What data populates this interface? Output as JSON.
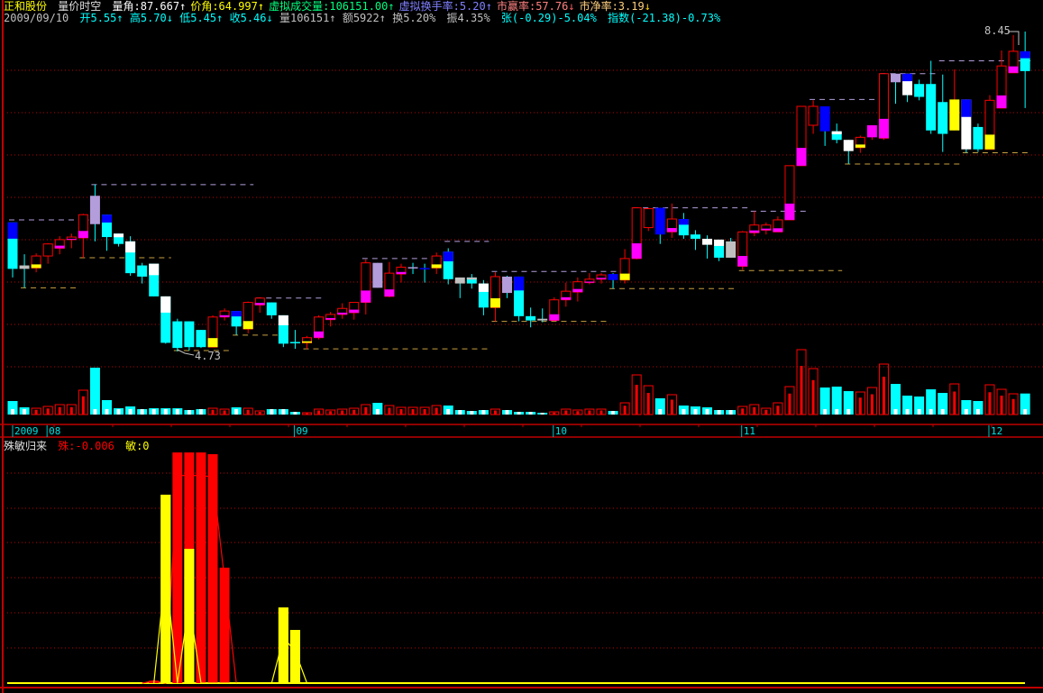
{
  "header": {
    "stock_name": "正和股份",
    "formula_name": "量价时空",
    "items": [
      {
        "label": "量角:87.667",
        "arrow": "↑",
        "color": "#ffffff",
        "arrow_color": "#ffffff"
      },
      {
        "label": "价角:64.997",
        "arrow": "↑",
        "color": "#ffff00",
        "arrow_color": "#ffff00"
      },
      {
        "label": "虚拟成交量:106151.00",
        "arrow": "↑",
        "color": "#00ff80",
        "arrow_color": "#00ff80"
      },
      {
        "label": "虚拟换手率:5.20",
        "arrow": "↑",
        "color": "#8080ff",
        "arrow_color": "#8080ff"
      },
      {
        "label": "市赢率:57.76",
        "arrow": "↓",
        "color": "#ff8080",
        "arrow_color": "#ff6060"
      },
      {
        "label": "市净率:3.19",
        "arrow": "↓",
        "color": "#ffd080",
        "arrow_color": "#ffd000"
      }
    ],
    "row2": {
      "date": "2009/09/10",
      "open": "开5.55",
      "open_arrow": "↑",
      "high": "高5.70",
      "high_arrow": "↓",
      "low": "低5.45",
      "low_arrow": "↑",
      "close": "收5.46",
      "close_arrow": "↓",
      "volume": "量106151",
      "volume_arrow": "↑",
      "amount": "额5922",
      "amount_arrow": "↑",
      "turnover": "换5.20%",
      "amplitude": "振4.35%",
      "change": "张(-0.29)-5.04%",
      "index": "指数(-21.38)-0.73%"
    }
  },
  "colors": {
    "up": "#ff0000",
    "down": "#00ffff",
    "grid": "#c00000",
    "cyan": "#00ffff",
    "blue": "#0000ff",
    "white": "#ffffff",
    "gray": "#c0c0c0",
    "purple": "#b39ddb",
    "yellow": "#ffff00",
    "magenta": "#ff00ff",
    "resistance": "#b39ddb",
    "support": "#c8a040"
  },
  "chart_data": [
    {
      "type": "candlestick",
      "title": "",
      "price_labels": {
        "max": "8.45",
        "min": "4.73"
      },
      "ylim": [
        4.45,
        8.45
      ],
      "candles": [
        [
          6.23,
          6.23,
          5.59,
          5.69,
          "cyan",
          "blue"
        ],
        [
          5.73,
          5.86,
          5.47,
          5.69,
          "gray",
          ""
        ],
        [
          5.7,
          5.87,
          5.65,
          5.84,
          "",
          "yellow"
        ],
        [
          5.84,
          5.99,
          5.75,
          5.98,
          "",
          ""
        ],
        [
          5.93,
          6.07,
          5.86,
          6.03,
          "",
          "magenta"
        ],
        [
          6.03,
          6.1,
          5.93,
          6.06,
          "",
          "magenta"
        ],
        [
          6.05,
          6.33,
          5.82,
          6.32,
          "",
          "magenta"
        ],
        [
          6.54,
          6.67,
          6.01,
          6.21,
          "purple",
          ""
        ],
        [
          6.32,
          6.32,
          5.9,
          6.06,
          "cyan",
          "blue"
        ],
        [
          6.1,
          6.1,
          5.95,
          5.98,
          "cyan",
          "white"
        ],
        [
          6.01,
          6.07,
          5.61,
          5.64,
          "cyan",
          "white"
        ],
        [
          5.73,
          5.76,
          5.52,
          5.6,
          "cyan",
          ""
        ],
        [
          5.75,
          5.75,
          5.37,
          5.37,
          "cyan",
          "white"
        ],
        [
          5.37,
          5.37,
          4.82,
          4.83,
          "cyan",
          "white"
        ],
        [
          5.08,
          5.11,
          4.73,
          4.77,
          "cyan",
          ""
        ],
        [
          5.08,
          5.08,
          4.74,
          4.78,
          "cyan",
          ""
        ],
        [
          4.98,
          4.98,
          4.77,
          4.78,
          "cyan",
          ""
        ],
        [
          4.78,
          5.15,
          4.78,
          5.13,
          "",
          "yellow"
        ],
        [
          5.13,
          5.23,
          5.09,
          5.2,
          "",
          "magenta"
        ],
        [
          5.2,
          5.2,
          4.92,
          5.02,
          "cyan",
          "blue"
        ],
        [
          4.99,
          5.31,
          4.94,
          5.3,
          "",
          "yellow"
        ],
        [
          5.27,
          5.36,
          5.18,
          5.35,
          "",
          "magenta"
        ],
        [
          5.3,
          5.3,
          5.11,
          5.15,
          "cyan",
          ""
        ],
        [
          5.15,
          5.15,
          4.78,
          4.82,
          "cyan",
          "white"
        ],
        [
          4.84,
          4.98,
          4.76,
          4.83,
          "cyan",
          ""
        ],
        [
          4.83,
          4.91,
          4.76,
          4.89,
          "",
          "yellow"
        ],
        [
          4.89,
          5.15,
          4.87,
          5.13,
          "",
          "magenta"
        ],
        [
          5.1,
          5.19,
          5.02,
          5.16,
          "",
          "magenta"
        ],
        [
          5.16,
          5.29,
          5.11,
          5.23,
          "",
          "magenta"
        ],
        [
          5.18,
          5.3,
          5.1,
          5.3,
          "",
          "magenta"
        ],
        [
          5.3,
          5.8,
          5.16,
          5.76,
          "",
          "magenta"
        ],
        [
          5.76,
          5.76,
          5.47,
          5.47,
          "purple",
          ""
        ],
        [
          5.37,
          5.77,
          5.36,
          5.64,
          "",
          "magenta"
        ],
        [
          5.63,
          5.75,
          5.53,
          5.71,
          "",
          "magenta"
        ],
        [
          5.71,
          5.76,
          5.63,
          5.71,
          "purple",
          ""
        ],
        [
          5.7,
          5.75,
          5.53,
          5.7,
          "blue",
          ""
        ],
        [
          5.7,
          5.88,
          5.63,
          5.84,
          "",
          "yellow"
        ],
        [
          5.89,
          5.93,
          5.51,
          5.57,
          "cyan",
          "blue"
        ],
        [
          5.59,
          5.59,
          5.35,
          5.52,
          "gray",
          ""
        ],
        [
          5.59,
          5.63,
          5.46,
          5.52,
          "cyan",
          "gray"
        ],
        [
          5.52,
          5.56,
          5.15,
          5.24,
          "cyan",
          "white"
        ],
        [
          5.24,
          5.65,
          5.08,
          5.6,
          "",
          "yellow"
        ],
        [
          5.6,
          5.61,
          5.35,
          5.41,
          "purple",
          ""
        ],
        [
          5.6,
          5.6,
          5.08,
          5.14,
          "cyan",
          "blue"
        ],
        [
          5.14,
          5.24,
          5.01,
          5.09,
          "cyan",
          ""
        ],
        [
          5.11,
          5.23,
          5.07,
          5.09,
          "gray",
          ""
        ],
        [
          5.09,
          5.36,
          5.09,
          5.33,
          "",
          "magenta"
        ],
        [
          5.33,
          5.53,
          5.25,
          5.43,
          "",
          "magenta"
        ],
        [
          5.42,
          5.59,
          5.31,
          5.54,
          "",
          "magenta"
        ],
        [
          5.53,
          5.64,
          5.51,
          5.57,
          "",
          "magenta"
        ],
        [
          5.57,
          5.64,
          5.52,
          5.62,
          "",
          "magenta"
        ],
        [
          5.63,
          5.64,
          5.46,
          5.56,
          "blue",
          ""
        ],
        [
          5.56,
          5.92,
          5.52,
          5.81,
          "",
          "yellow"
        ],
        [
          5.81,
          6.4,
          5.8,
          6.4,
          "",
          "magenta"
        ],
        [
          6.17,
          6.4,
          6.13,
          6.39,
          "",
          ""
        ],
        [
          6.4,
          6.4,
          5.98,
          6.09,
          "blue",
          ""
        ],
        [
          6.12,
          6.45,
          6.05,
          6.27,
          "",
          "magenta"
        ],
        [
          6.27,
          6.34,
          6.04,
          6.08,
          "cyan",
          "blue"
        ],
        [
          6.09,
          6.14,
          5.91,
          6.04,
          "cyan",
          ""
        ],
        [
          6.04,
          6.08,
          5.81,
          5.97,
          "white",
          ""
        ],
        [
          6.03,
          6.03,
          5.78,
          5.82,
          "cyan",
          "white"
        ],
        [
          6.01,
          6.05,
          5.82,
          5.82,
          "gray",
          ""
        ],
        [
          5.72,
          6.13,
          5.68,
          6.12,
          "",
          "magenta"
        ],
        [
          6.11,
          6.36,
          6.07,
          6.2,
          "",
          "magenta"
        ],
        [
          6.14,
          6.23,
          6.09,
          6.2,
          "",
          "magenta"
        ],
        [
          6.12,
          6.3,
          6.12,
          6.26,
          "",
          "magenta"
        ],
        [
          6.26,
          6.89,
          6.26,
          6.89,
          "",
          "magenta"
        ],
        [
          6.89,
          7.58,
          6.89,
          7.58,
          "",
          "magenta"
        ],
        [
          7.36,
          7.65,
          7.26,
          7.58,
          "",
          ""
        ],
        [
          7.58,
          7.58,
          7.12,
          7.29,
          "blue",
          ""
        ],
        [
          7.29,
          7.38,
          7.15,
          7.19,
          "cyan",
          "white"
        ],
        [
          7.19,
          7.19,
          6.91,
          7.06,
          "white",
          ""
        ],
        [
          7.1,
          7.24,
          7.04,
          7.22,
          "",
          "yellow"
        ],
        [
          7.22,
          7.36,
          7.19,
          7.36,
          "magenta",
          ""
        ],
        [
          7.21,
          7.96,
          7.19,
          7.96,
          "",
          "magenta"
        ],
        [
          7.96,
          7.96,
          7.61,
          7.86,
          "purple",
          ""
        ],
        [
          7.96,
          7.96,
          7.63,
          7.71,
          "white",
          "blue"
        ],
        [
          7.84,
          7.89,
          7.65,
          7.69,
          "cyan",
          ""
        ],
        [
          7.84,
          8.11,
          7.26,
          7.3,
          "cyan",
          ""
        ],
        [
          7.63,
          7.95,
          7.05,
          7.26,
          "cyan",
          ""
        ],
        [
          7.3,
          8.01,
          7.3,
          7.66,
          "yellow",
          ""
        ],
        [
          7.66,
          7.66,
          7.04,
          7.08,
          "white",
          "blue"
        ],
        [
          7.34,
          7.38,
          7.05,
          7.08,
          "cyan",
          ""
        ],
        [
          7.08,
          7.71,
          7.08,
          7.65,
          "",
          "yellow"
        ],
        [
          7.56,
          8.23,
          7.56,
          8.05,
          "",
          "magenta"
        ],
        [
          7.97,
          8.41,
          7.97,
          8.22,
          "",
          "magenta"
        ],
        [
          8.22,
          8.45,
          7.56,
          7.99,
          "cyan",
          "blue"
        ]
      ],
      "volume": [
        68200,
        36400,
        31800,
        40900,
        50000,
        50000,
        122800,
        236500,
        72800,
        31800,
        40900,
        27300,
        31800,
        31800,
        31800,
        22700,
        27300,
        31800,
        27300,
        36400,
        31800,
        18200,
        27300,
        27300,
        13600,
        9100,
        27300,
        22700,
        27300,
        31800,
        50000,
        59100,
        45500,
        36400,
        36400,
        36400,
        45500,
        45500,
        22700,
        18200,
        22700,
        27300,
        22700,
        13600,
        13600,
        9100,
        13600,
        27300,
        22700,
        27300,
        27300,
        18200,
        59100,
        200100,
        145500,
        81900,
        100100,
        45500,
        40900,
        36400,
        22700,
        22700,
        40900,
        50000,
        31800,
        59100,
        141000,
        327500,
        231900,
        136400,
        141000,
        118200,
        113700,
        136400,
        254700,
        154600,
        95500,
        91000,
        127300,
        109200,
        154600,
        72800,
        68200,
        150100,
        127300,
        104600,
        106151
      ],
      "levels": [
        {
          "price": 6.26,
          "from": 0,
          "to": 6,
          "kind": "resistance"
        },
        {
          "price": 6.67,
          "from": 7,
          "to": 20,
          "kind": "resistance"
        },
        {
          "price": 5.35,
          "from": 21,
          "to": 26,
          "kind": "resistance"
        },
        {
          "price": 5.81,
          "from": 30,
          "to": 36,
          "kind": "resistance"
        },
        {
          "price": 6.01,
          "from": 37,
          "to": 40,
          "kind": "resistance"
        },
        {
          "price": 5.66,
          "from": 41,
          "to": 52,
          "kind": "resistance"
        },
        {
          "price": 6.4,
          "from": 53,
          "to": 62,
          "kind": "resistance"
        },
        {
          "price": 6.36,
          "from": 63,
          "to": 67,
          "kind": "resistance"
        },
        {
          "price": 7.66,
          "from": 68,
          "to": 73,
          "kind": "resistance"
        },
        {
          "price": 7.96,
          "from": 74,
          "to": 78,
          "kind": "resistance"
        },
        {
          "price": 8.11,
          "from": 79,
          "to": 86,
          "kind": "resistance"
        },
        {
          "price": 5.47,
          "from": 1,
          "to": 5,
          "kind": "support"
        },
        {
          "price": 5.82,
          "from": 6,
          "to": 13,
          "kind": "support"
        },
        {
          "price": 4.74,
          "from": 14,
          "to": 18,
          "kind": "support"
        },
        {
          "price": 4.92,
          "from": 19,
          "to": 23,
          "kind": "support"
        },
        {
          "price": 4.76,
          "from": 25,
          "to": 40,
          "kind": "support"
        },
        {
          "price": 5.08,
          "from": 41,
          "to": 50,
          "kind": "support"
        },
        {
          "price": 5.46,
          "from": 51,
          "to": 61,
          "kind": "support"
        },
        {
          "price": 5.67,
          "from": 62,
          "to": 70,
          "kind": "support"
        },
        {
          "price": 6.91,
          "from": 71,
          "to": 80,
          "kind": "support"
        },
        {
          "price": 7.04,
          "from": 81,
          "to": 86,
          "kind": "support"
        }
      ],
      "time_axis": {
        "year": "2009",
        "months": [
          {
            "label": "08",
            "at": 3
          },
          {
            "label": "09",
            "at": 24
          },
          {
            "label": "10",
            "at": 46
          },
          {
            "label": "11",
            "at": 62
          },
          {
            "label": "12",
            "at": 83
          }
        ]
      }
    },
    {
      "type": "bar",
      "title": "殊敏归来",
      "series": [
        {
          "name": "殊",
          "readout": "殊:-0.006",
          "color": "#ff0000",
          "points": [
            [
              12,
              0.01
            ],
            [
              14,
              0.955
            ],
            [
              15,
              0.955
            ],
            [
              16,
              0.955
            ],
            [
              17,
              0.948
            ],
            [
              18,
              0.478
            ]
          ]
        },
        {
          "name": "敏",
          "readout": "敏:0",
          "color": "#ffff00",
          "points": [
            [
              13,
              0.78
            ],
            [
              15,
              0.556
            ],
            [
              23,
              0.313
            ],
            [
              24,
              0.22
            ]
          ]
        }
      ],
      "ylim": [
        0,
        1
      ]
    }
  ]
}
